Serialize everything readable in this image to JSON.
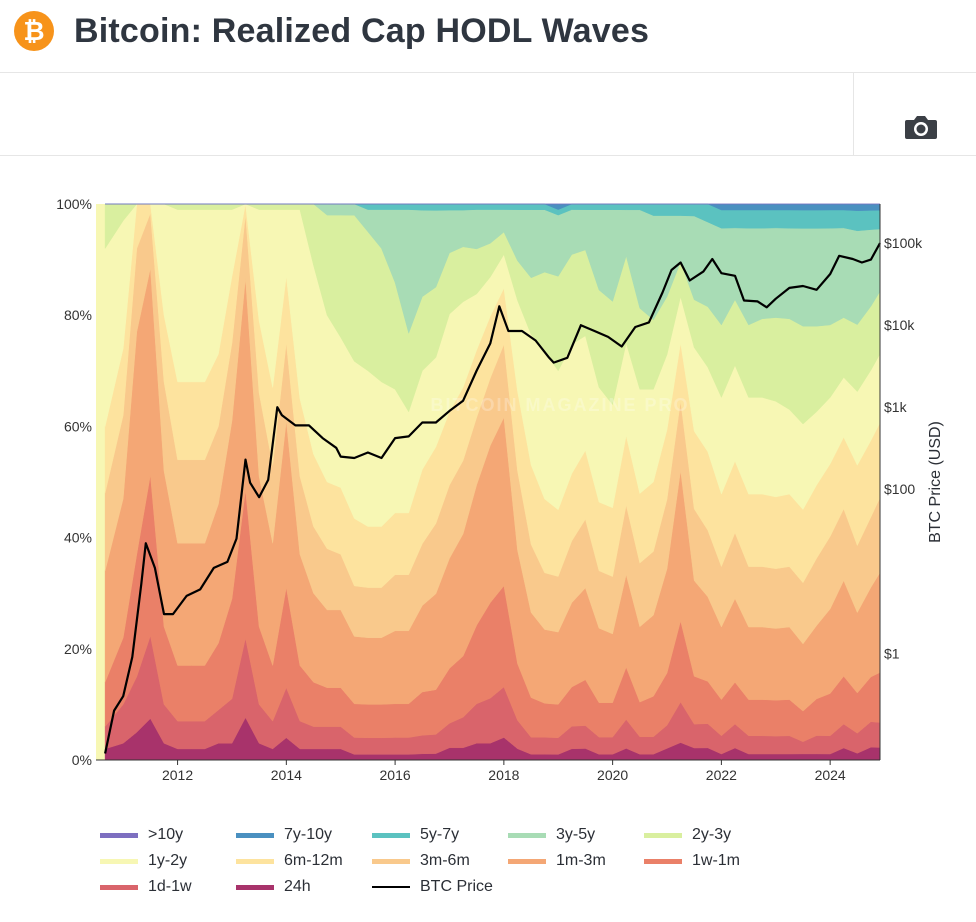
{
  "header": {
    "title": "Bitcoin: Realized Cap HODL Waves",
    "logo_glyph": "₿",
    "logo_color": "#f7931a"
  },
  "toolbar": {
    "camera_icon": "camera-icon"
  },
  "watermark": "BITCOIN MAGAZINE PRO",
  "chart_data": {
    "type": "area",
    "stacked": true,
    "x": [
      "2010-09",
      "2011-01",
      "2011-04",
      "2011-07",
      "2011-10",
      "2012-01",
      "2012-04",
      "2012-07",
      "2012-10",
      "2013-01",
      "2013-04",
      "2013-07",
      "2013-10",
      "2014-01",
      "2014-04",
      "2014-07",
      "2014-10",
      "2015-01",
      "2015-04",
      "2015-07",
      "2015-10",
      "2016-01",
      "2016-04",
      "2016-07",
      "2016-10",
      "2017-01",
      "2017-04",
      "2017-07",
      "2017-10",
      "2018-01",
      "2018-04",
      "2018-07",
      "2018-10",
      "2019-01",
      "2019-04",
      "2019-07",
      "2019-10",
      "2020-01",
      "2020-04",
      "2020-07",
      "2020-10",
      "2021-01",
      "2021-04",
      "2021-07",
      "2021-10",
      "2022-01",
      "2022-04",
      "2022-07",
      "2022-10",
      "2023-01",
      "2023-04",
      "2023-07",
      "2023-10",
      "2024-01",
      "2024-04",
      "2024-07",
      "2024-10",
      "2024-12"
    ],
    "series": [
      {
        "name": "24h",
        "color": "#a8336b",
        "values": [
          2,
          3,
          5,
          9,
          3,
          2,
          2,
          2,
          3,
          3,
          8,
          3,
          2,
          4,
          2,
          2,
          2,
          2,
          1,
          1,
          1,
          1,
          1,
          1,
          1,
          2,
          2,
          3,
          3,
          4,
          2,
          1,
          1,
          1,
          2,
          2,
          1,
          1,
          2,
          1,
          1,
          2,
          3,
          2,
          2,
          1,
          2,
          1,
          1,
          1,
          1,
          1,
          1,
          1,
          2,
          1,
          2,
          2
        ]
      },
      {
        "name": "1d-1w",
        "color": "#d9646b",
        "values": [
          4,
          7,
          10,
          18,
          7,
          5,
          5,
          5,
          6,
          8,
          15,
          7,
          5,
          9,
          5,
          4,
          4,
          4,
          3,
          3,
          3,
          3,
          3,
          3,
          3,
          4,
          5,
          7,
          8,
          9,
          5,
          3,
          3,
          3,
          4,
          4,
          3,
          3,
          5,
          3,
          3,
          4,
          7,
          4,
          4,
          3,
          4,
          3,
          3,
          3,
          3,
          2,
          3,
          3,
          4,
          3,
          4,
          4
        ]
      },
      {
        "name": "1w-1m",
        "color": "#ea8068",
        "values": [
          8,
          12,
          22,
          35,
          14,
          10,
          10,
          10,
          12,
          18,
          28,
          14,
          10,
          18,
          10,
          8,
          7,
          7,
          6,
          6,
          6,
          6,
          6,
          7,
          7,
          9,
          10,
          14,
          17,
          18,
          10,
          7,
          6,
          6,
          7,
          8,
          6,
          6,
          9,
          6,
          7,
          9,
          14,
          8,
          7,
          6,
          7,
          6,
          6,
          6,
          6,
          5,
          6,
          7,
          8,
          6,
          7,
          8
        ]
      },
      {
        "name": "1m-3m",
        "color": "#f4a775",
        "values": [
          20,
          25,
          40,
          45,
          28,
          22,
          22,
          22,
          25,
          32,
          40,
          27,
          22,
          30,
          20,
          16,
          14,
          14,
          12,
          12,
          12,
          13,
          13,
          14,
          15,
          18,
          20,
          25,
          28,
          30,
          20,
          15,
          13,
          13,
          15,
          16,
          13,
          12,
          16,
          13,
          14,
          18,
          26,
          16,
          14,
          12,
          14,
          12,
          12,
          12,
          12,
          11,
          12,
          14,
          16,
          12,
          14,
          16
        ]
      },
      {
        "name": "3m-6m",
        "color": "#f9c98c",
        "values": [
          14,
          15,
          15,
          12,
          16,
          15,
          15,
          15,
          14,
          14,
          12,
          15,
          14,
          14,
          14,
          12,
          11,
          10,
          9,
          9,
          9,
          10,
          10,
          10,
          11,
          12,
          12,
          12,
          12,
          13,
          14,
          12,
          10,
          10,
          11,
          12,
          10,
          10,
          12,
          11,
          11,
          12,
          12,
          12,
          11,
          10,
          11,
          10,
          10,
          10,
          10,
          10,
          11,
          12,
          12,
          10,
          11,
          12
        ]
      },
      {
        "name": "6m-12m",
        "color": "#fde39e",
        "values": [
          12,
          12,
          8,
          2,
          12,
          14,
          14,
          14,
          13,
          12,
          2,
          13,
          14,
          12,
          14,
          13,
          12,
          12,
          12,
          11,
          11,
          11,
          11,
          12,
          12,
          12,
          12,
          12,
          11,
          10,
          14,
          14,
          13,
          12,
          12,
          12,
          12,
          12,
          12,
          12,
          12,
          12,
          10,
          13,
          13,
          12,
          12,
          12,
          12,
          12,
          12,
          12,
          12,
          12,
          12,
          12,
          12,
          12
        ]
      },
      {
        "name": "1y-2y",
        "color": "#f7f7b4",
        "values": [
          32,
          23,
          0,
          0,
          20,
          31,
          31,
          31,
          26,
          12,
          0,
          20,
          32,
          12,
          34,
          34,
          30,
          27,
          28,
          28,
          26,
          22,
          18,
          16,
          14,
          16,
          14,
          10,
          7,
          6,
          16,
          23,
          26,
          25,
          23,
          20,
          20,
          18,
          16,
          18,
          16,
          13,
          8,
          14,
          14,
          16,
          16,
          16,
          16,
          16,
          14,
          14,
          12,
          11,
          10,
          11,
          11,
          11
        ]
      },
      {
        "name": "2y-3y",
        "color": "#d9ef9f",
        "values": [
          8,
          3,
          0,
          0,
          0,
          1,
          1,
          1,
          1,
          1,
          0,
          1,
          1,
          1,
          1,
          11,
          18,
          22,
          26,
          25,
          24,
          19,
          14,
          12,
          11,
          10,
          9,
          8,
          6,
          4,
          7,
          10,
          14,
          17,
          16,
          15,
          17,
          18,
          15,
          14,
          12,
          10,
          6,
          8,
          10,
          12,
          11,
          12,
          13,
          14,
          15,
          16,
          14,
          12,
          10,
          10,
          10,
          10
        ]
      },
      {
        "name": "3y-5y",
        "color": "#a8dcb5",
        "values": [
          0,
          0,
          0,
          0,
          0,
          0,
          0,
          0,
          0,
          0,
          0,
          0,
          0,
          0,
          0,
          0,
          2,
          2,
          2,
          4,
          7,
          13,
          22,
          14,
          12,
          7,
          6,
          7,
          6,
          4,
          9,
          12,
          11,
          11,
          8,
          7,
          14,
          16,
          8,
          17,
          18,
          14,
          8,
          14,
          14,
          16,
          12,
          16,
          15,
          15,
          15,
          16,
          16,
          16,
          15,
          14,
          12,
          10
        ]
      },
      {
        "name": "5y-7y",
        "color": "#5bc2c0",
        "values": [
          0,
          0,
          0,
          0,
          0,
          0,
          0,
          0,
          0,
          0,
          0,
          0,
          0,
          0,
          0,
          0,
          0,
          0,
          0,
          1,
          1,
          1,
          1,
          1,
          1,
          1,
          1,
          1,
          1,
          1,
          1,
          1,
          1,
          1,
          1,
          1,
          1,
          1,
          1,
          1,
          2,
          2,
          2,
          2,
          3,
          3,
          3,
          3,
          3,
          3,
          3,
          3,
          3,
          3,
          3,
          3,
          3,
          3
        ]
      },
      {
        "name": "7y-10y",
        "color": "#4a90c0",
        "values": [
          0,
          0,
          0,
          0,
          0,
          0,
          0,
          0,
          0,
          0,
          0,
          0,
          0,
          0,
          0,
          0,
          0,
          0,
          0,
          0,
          0,
          0,
          0,
          0,
          0,
          0,
          0,
          0,
          0,
          0,
          0,
          0,
          0,
          1,
          0,
          0,
          0,
          0,
          0,
          0,
          0,
          0,
          0,
          0,
          0,
          1,
          1,
          1,
          1,
          1,
          1,
          1,
          1,
          1,
          1,
          1,
          1,
          1
        ]
      },
      {
        "name": ">10y",
        "color": "#7d6fc0",
        "values": [
          0,
          0,
          0,
          0,
          0,
          0,
          0,
          0,
          0,
          0,
          0,
          0,
          0,
          0,
          0,
          0,
          0,
          0,
          0,
          0,
          0,
          0,
          0,
          0,
          0,
          0,
          0,
          0,
          0,
          0,
          0,
          0,
          0,
          0,
          0,
          0,
          0,
          0,
          0,
          0,
          0,
          0,
          0,
          0,
          0,
          0,
          0,
          0,
          0,
          0,
          0,
          0,
          0,
          0,
          0,
          0,
          0,
          0
        ]
      }
    ],
    "price_series": {
      "name": "BTC Price",
      "color": "#000000",
      "x": [
        "2010-09",
        "2010-11",
        "2011-01",
        "2011-03",
        "2011-05",
        "2011-06",
        "2011-08",
        "2011-10",
        "2011-12",
        "2012-03",
        "2012-06",
        "2012-09",
        "2012-12",
        "2013-02",
        "2013-04",
        "2013-05",
        "2013-07",
        "2013-09",
        "2013-11",
        "2013-12",
        "2014-03",
        "2014-06",
        "2014-09",
        "2014-12",
        "2015-01",
        "2015-04",
        "2015-07",
        "2015-10",
        "2016-01",
        "2016-04",
        "2016-07",
        "2016-10",
        "2017-01",
        "2017-04",
        "2017-07",
        "2017-10",
        "2017-12",
        "2018-02",
        "2018-05",
        "2018-08",
        "2018-11",
        "2018-12",
        "2019-03",
        "2019-06",
        "2019-09",
        "2019-12",
        "2020-03",
        "2020-06",
        "2020-09",
        "2020-12",
        "2021-02",
        "2021-04",
        "2021-06",
        "2021-09",
        "2021-11",
        "2022-01",
        "2022-04",
        "2022-06",
        "2022-09",
        "2022-11",
        "2023-01",
        "2023-04",
        "2023-07",
        "2023-10",
        "2024-01",
        "2024-03",
        "2024-06",
        "2024-08",
        "2024-10",
        "2024-12"
      ],
      "values": [
        0.06,
        0.2,
        0.3,
        0.9,
        7,
        22,
        11,
        3,
        3,
        5,
        6,
        11,
        13,
        25,
        230,
        120,
        80,
        130,
        1000,
        800,
        600,
        600,
        420,
        320,
        250,
        240,
        280,
        240,
        420,
        440,
        650,
        650,
        900,
        1200,
        2800,
        6000,
        17000,
        8500,
        8500,
        6500,
        4000,
        3500,
        4000,
        10000,
        8500,
        7200,
        5500,
        9500,
        10800,
        25000,
        47000,
        58000,
        35000,
        45000,
        64000,
        43000,
        40000,
        20000,
        19500,
        16500,
        21000,
        28500,
        30000,
        27000,
        42000,
        70000,
        64000,
        58000,
        63000,
        100000
      ]
    },
    "x_ticks": [
      "2012",
      "2014",
      "2016",
      "2018",
      "2020",
      "2022",
      "2024"
    ],
    "y_ticks_left": [
      "0%",
      "20%",
      "40%",
      "60%",
      "80%",
      "100%"
    ],
    "y_ticks_right": [
      "$1",
      "$100",
      "$1k",
      "$10k",
      "$100k"
    ],
    "ylabel_right": "BTC Price (USD)",
    "ylim_left": [
      0,
      100
    ],
    "ylim_right": [
      0.05,
      300000
    ],
    "y_scale_right": "log",
    "xlim": [
      "2010-07",
      "2024-12"
    ],
    "grid": false,
    "legend_position": "bottom"
  }
}
